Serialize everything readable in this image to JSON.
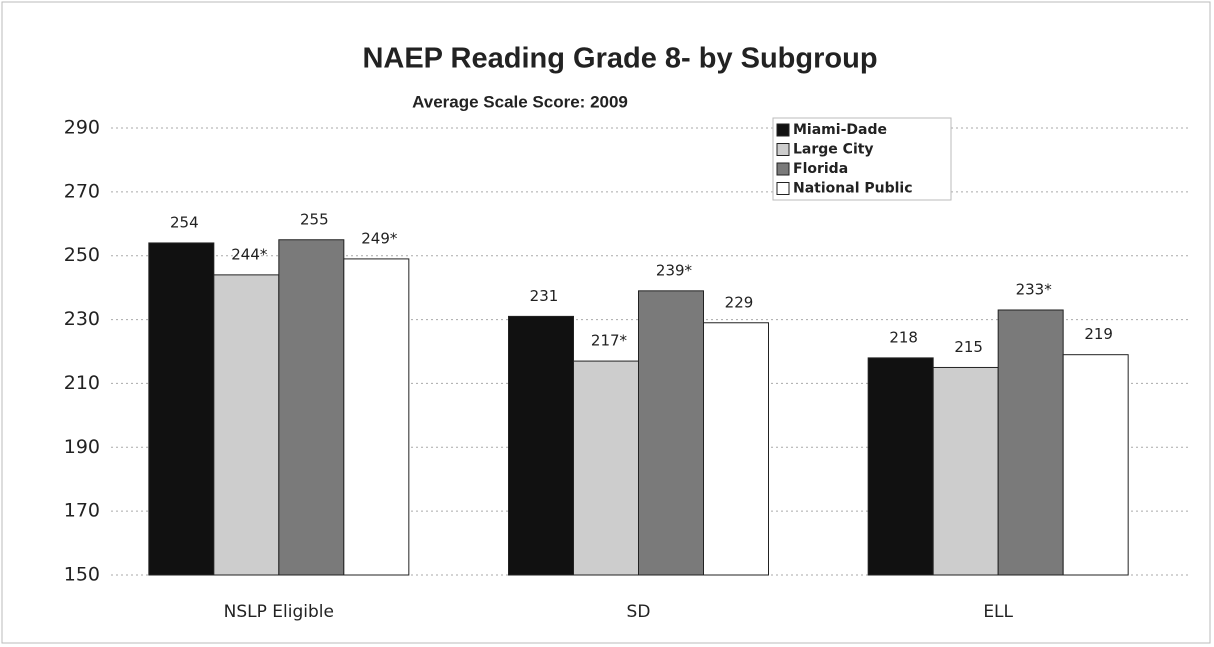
{
  "chart_data": {
    "type": "bar",
    "title": "NAEP Reading Grade 8- by Subgroup",
    "subtitle": "Average Scale Score:  2009",
    "categories": [
      "NSLP Eligible",
      "SD",
      "ELL"
    ],
    "series": [
      {
        "name": "Miami-Dade",
        "color": "#111111",
        "values": [
          254,
          231,
          218
        ],
        "value_labels": [
          "254",
          "231",
          "218"
        ]
      },
      {
        "name": "Large City",
        "color": "#cdcdcd",
        "values": [
          244,
          217,
          215
        ],
        "value_labels": [
          "244*",
          "217*",
          "215"
        ]
      },
      {
        "name": "Florida",
        "color": "#7a7a7a",
        "values": [
          255,
          239,
          233
        ],
        "value_labels": [
          "255",
          "239*",
          "233*"
        ]
      },
      {
        "name": "National Public",
        "color": "#ffffff",
        "values": [
          249,
          229,
          219
        ],
        "value_labels": [
          "249*",
          "229",
          "219"
        ]
      }
    ],
    "ylim": [
      150,
      290
    ],
    "yticks": [
      150,
      170,
      190,
      210,
      230,
      250,
      270,
      290
    ],
    "grid": true,
    "legend": "top"
  }
}
